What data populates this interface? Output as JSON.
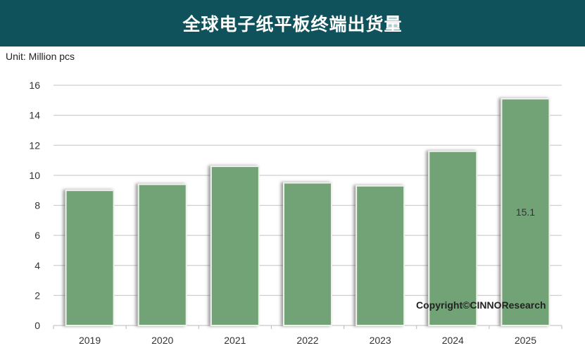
{
  "chart_data": {
    "type": "bar",
    "title": "全球电子纸平板终端出货量",
    "ylabel": "Unit: Million pcs",
    "categories": [
      "2019",
      "2020",
      "2021",
      "2022",
      "2023",
      "2024",
      "2025"
    ],
    "values": [
      9.0,
      9.4,
      10.6,
      9.5,
      9.3,
      11.6,
      15.1
    ],
    "data_labels": {
      "2025": "15.1"
    },
    "ylim": [
      0,
      16
    ],
    "yticks": [
      0,
      2,
      4,
      6,
      8,
      10,
      12,
      14,
      16
    ],
    "grid": true,
    "bar_color": "#72a376",
    "header_color": "#0f525b",
    "watermark": "Copyright©CINNOResearch"
  }
}
